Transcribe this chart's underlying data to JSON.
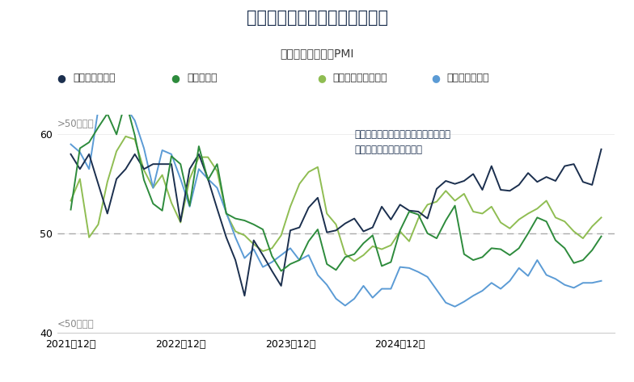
{
  "title": "経済成長と政策スタンスが乖離",
  "subtitle": "米国とユーロ圏のPMI",
  "annotation_line1": "米国の事業活動は打たれ強い一方で、",
  "annotation_line2": "欧州は製造業を中心に軟調",
  "legend_labels": [
    "米国サービス業",
    "米国製造業",
    "ユーロ圏サービス業",
    "ユーロ圏製造業"
  ],
  "line_colors": [
    "#1b2f4e",
    "#2d8b3c",
    "#8fbd52",
    "#5b9bd5"
  ],
  "legend_marker_colors": [
    "#1b2f4e",
    "#2d8b3c",
    "#8fbd52",
    "#5b9bd5"
  ],
  "label_gt50": ">50＝拡大",
  "label_lt50": "<50＝縮小",
  "ylim": [
    40,
    62
  ],
  "yticks": [
    40,
    50,
    60
  ],
  "ref_line": 50,
  "bg_color": "#ffffff",
  "title_color": "#1b2f4e",
  "subtitle_color": "#3a3a3a",
  "text_color": "#3a3a3a",
  "annotation_color": "#1b2f4e",
  "us_services": [
    58.0,
    56.5,
    58.0,
    55.0,
    52.0,
    55.5,
    56.5,
    58.0,
    56.5,
    57.0,
    57.0,
    57.0,
    51.2,
    56.5,
    58.0,
    55.5,
    52.5,
    49.6,
    47.3,
    43.7,
    49.3,
    47.8,
    46.2,
    44.7,
    50.3,
    50.6,
    52.6,
    53.6,
    50.1,
    50.3,
    51.0,
    51.5,
    50.2,
    50.6,
    52.7,
    51.4,
    52.9,
    52.3,
    52.2,
    51.5,
    54.5,
    55.3,
    55.0,
    55.3,
    56.0,
    54.4,
    56.8,
    54.4,
    54.3,
    54.9,
    56.1,
    55.2,
    55.7,
    55.3,
    56.8,
    57.0,
    55.2,
    54.9,
    58.5
  ],
  "us_manufacturing": [
    52.4,
    58.6,
    59.2,
    60.7,
    62.1,
    60.0,
    63.4,
    59.9,
    55.4,
    53.0,
    52.3,
    57.8,
    57.0,
    52.8,
    58.8,
    55.4,
    57.0,
    52.0,
    51.5,
    51.3,
    50.9,
    50.4,
    47.7,
    46.2,
    46.9,
    47.3,
    49.2,
    50.4,
    46.9,
    46.3,
    47.6,
    47.9,
    49.0,
    49.8,
    46.7,
    47.1,
    50.3,
    52.2,
    51.9,
    50.0,
    49.5,
    51.3,
    52.8,
    47.9,
    47.3,
    47.6,
    48.5,
    48.4,
    47.8,
    48.5,
    50.0,
    51.6,
    51.2,
    49.3,
    48.5,
    47.0,
    47.3,
    48.3,
    49.7
  ],
  "eu_services": [
    53.3,
    55.5,
    49.6,
    50.9,
    55.2,
    58.3,
    59.8,
    59.5,
    56.4,
    54.6,
    55.9,
    53.1,
    51.1,
    55.5,
    57.7,
    57.7,
    56.3,
    52.0,
    50.2,
    49.8,
    48.9,
    48.2,
    48.5,
    49.8,
    52.7,
    55.0,
    56.2,
    56.7,
    52.0,
    50.9,
    47.9,
    47.2,
    47.8,
    48.7,
    48.4,
    48.8,
    50.2,
    49.2,
    51.5,
    52.9,
    53.2,
    54.3,
    53.3,
    54.0,
    52.2,
    52.0,
    52.7,
    51.1,
    50.5,
    51.4,
    52.0,
    52.5,
    53.3,
    51.6,
    51.2,
    50.2,
    49.5,
    50.7,
    51.6
  ],
  "eu_manufacturing": [
    59.0,
    58.2,
    56.5,
    62.5,
    63.1,
    63.4,
    62.8,
    61.4,
    58.6,
    54.6,
    58.4,
    58.0,
    55.5,
    52.7,
    56.5,
    55.5,
    54.6,
    52.1,
    49.6,
    47.5,
    48.4,
    46.6,
    47.1,
    47.8,
    48.5,
    47.3,
    47.8,
    45.8,
    44.8,
    43.4,
    42.7,
    43.4,
    44.7,
    43.5,
    44.4,
    44.4,
    46.6,
    46.5,
    46.1,
    45.6,
    44.3,
    43.0,
    42.6,
    43.1,
    43.7,
    44.2,
    45.0,
    44.4,
    45.2,
    46.5,
    45.7,
    47.3,
    45.8,
    45.4,
    44.8,
    44.5,
    45.0,
    45.0,
    45.2
  ],
  "x_tick_positions": [
    0,
    12,
    24,
    36
  ],
  "x_tick_labels": [
    "2021年12月",
    "2022年12月",
    "2023年12月",
    "2024年12月"
  ]
}
